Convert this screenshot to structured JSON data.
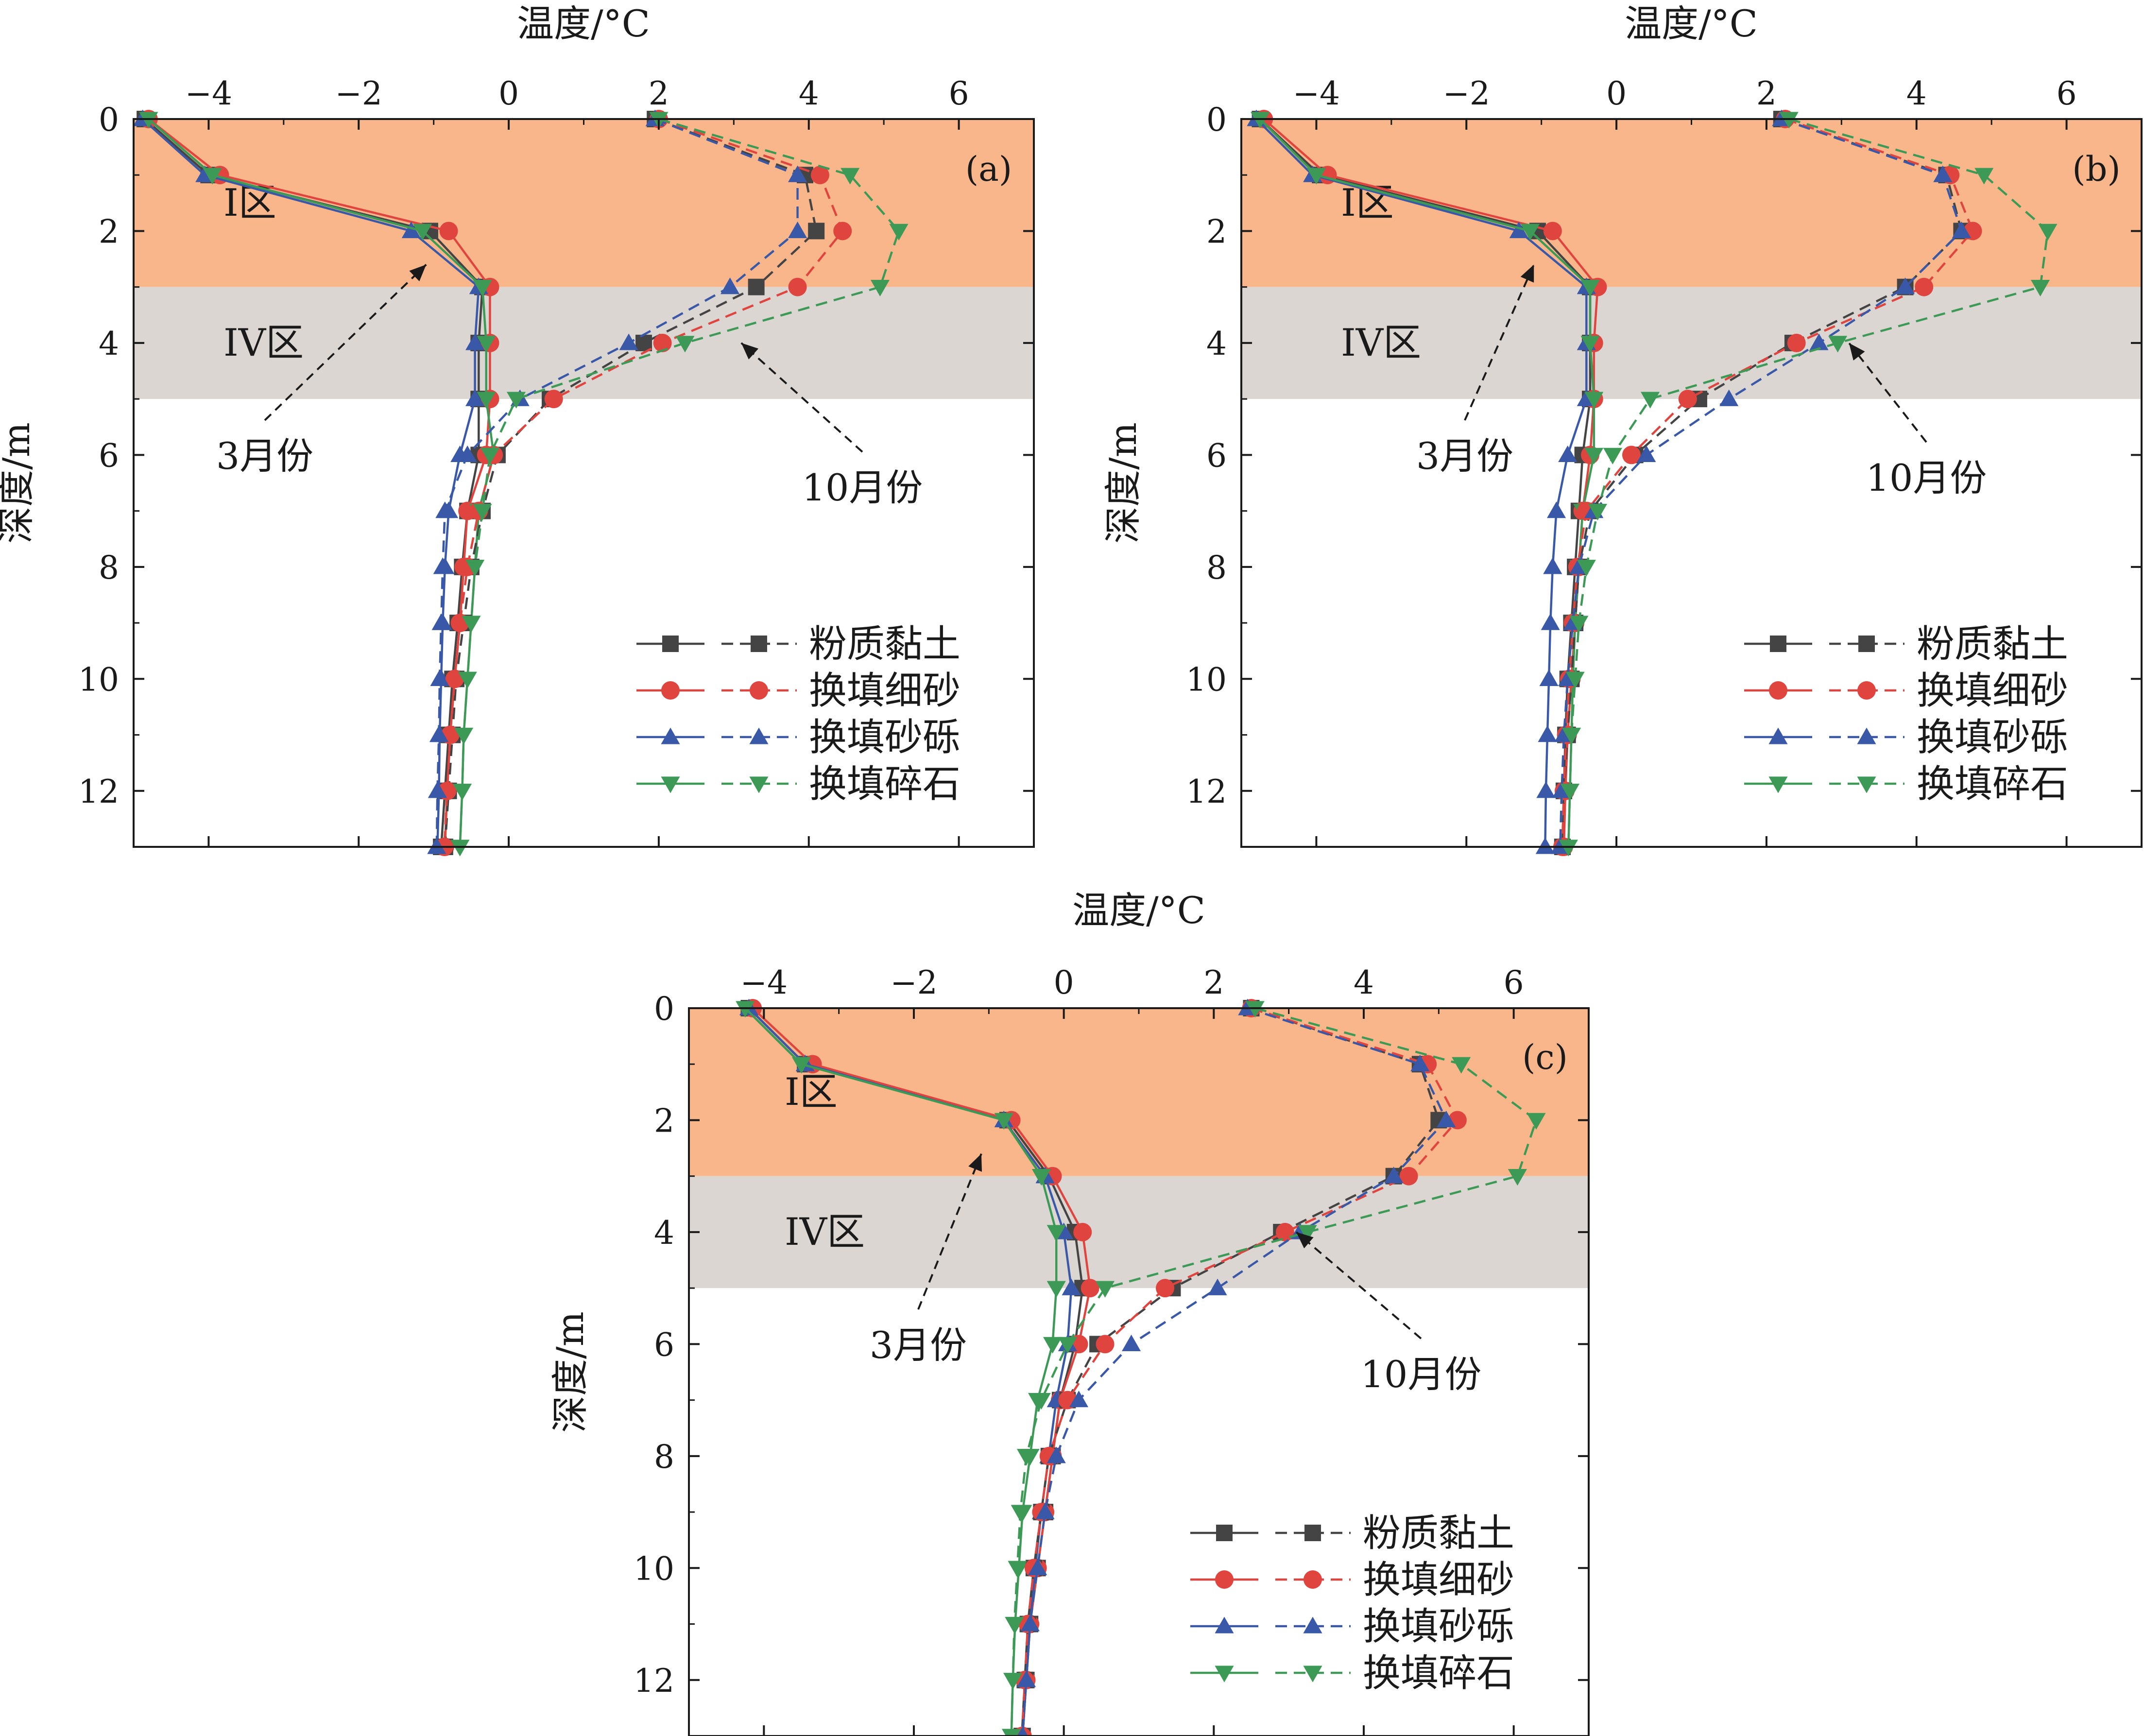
{
  "chart_data": {
    "type": "line",
    "description": "Ground temperature vs depth profiles for four subgrade backfill materials, March (solid lines) and October (dashed lines)",
    "shared": {
      "xlabel": "温度/°C",
      "ylabel": "深度/m",
      "y_ticks": [
        0,
        2,
        4,
        6,
        8,
        10,
        12
      ],
      "y_tick_labels": [
        "0",
        "2",
        "4",
        "6",
        "8",
        "10",
        "12"
      ],
      "ylim": [
        0,
        13
      ],
      "depth": [
        0,
        1,
        2,
        3,
        4,
        5,
        6,
        7,
        8,
        9,
        10,
        11,
        12,
        13
      ],
      "zones": [
        {
          "label": "I区",
          "from_depth": 0,
          "to_depth": 3,
          "color": "#f8b68a"
        },
        {
          "label": "IV区",
          "from_depth": 3,
          "to_depth": 5,
          "color": "#dcd6d2"
        }
      ],
      "annotations": [
        {
          "text": "3月份",
          "points_to": [
            -1.1,
            2.6
          ],
          "series_group": "March"
        },
        {
          "text": "10月份",
          "points_to": [
            3.1,
            4.0
          ],
          "series_group": "October"
        }
      ],
      "legend": {
        "location": "lower-right",
        "entries": [
          {
            "label": "粉质黏土",
            "color": "#444444",
            "marker": "square"
          },
          {
            "label": "换填细砂",
            "color": "#e0443e",
            "marker": "circle"
          },
          {
            "label": "换填砂砾",
            "color": "#3a58a8",
            "marker": "triangle-up"
          },
          {
            "label": "换填碎石",
            "color": "#3c9a56",
            "marker": "triangle-down"
          }
        ],
        "line_styles": {
          "March": "solid",
          "October": "dashed"
        }
      }
    },
    "panels": [
      {
        "label": "(a)",
        "x_ticks": [
          -4,
          -2,
          0,
          2,
          4,
          6
        ],
        "x_tick_labels": [
          "−4",
          "−2",
          "0",
          "2",
          "4",
          "6"
        ],
        "xlim": [
          -5,
          7
        ],
        "series": [
          {
            "name": "粉质黏土",
            "month": "March",
            "values": [
              -4.85,
              -4.0,
              -1.05,
              -0.35,
              -0.4,
              -0.4,
              -0.4,
              -0.55,
              -0.62,
              -0.68,
              -0.75,
              -0.8,
              -0.85,
              -0.9
            ]
          },
          {
            "name": "换填细砂",
            "month": "March",
            "values": [
              -4.8,
              -3.85,
              -0.8,
              -0.25,
              -0.25,
              -0.25,
              -0.3,
              -0.55,
              -0.6,
              -0.65,
              -0.72,
              -0.78,
              -0.82,
              -0.85
            ]
          },
          {
            "name": "换填砂砾",
            "month": "March",
            "values": [
              -4.88,
              -4.05,
              -1.3,
              -0.4,
              -0.45,
              -0.45,
              -0.65,
              -0.8,
              -0.85,
              -0.88,
              -0.9,
              -0.92,
              -0.93,
              -0.95
            ]
          },
          {
            "name": "换填碎石",
            "month": "March",
            "values": [
              -4.8,
              -3.95,
              -1.15,
              -0.35,
              -0.3,
              -0.3,
              -0.2,
              -0.4,
              -0.45,
              -0.5,
              -0.55,
              -0.6,
              -0.62,
              -0.65
            ]
          },
          {
            "name": "粉质黏土",
            "month": "October",
            "values": [
              1.95,
              3.95,
              4.1,
              3.3,
              1.8,
              0.55,
              -0.15,
              -0.35,
              -0.5,
              -0.6,
              -0.7,
              -0.75,
              -0.8,
              -0.85
            ]
          },
          {
            "name": "换填细砂",
            "month": "October",
            "values": [
              2.0,
              4.15,
              4.45,
              3.85,
              2.05,
              0.6,
              -0.2,
              -0.4,
              -0.55,
              -0.65,
              -0.72,
              -0.78,
              -0.82,
              -0.86
            ]
          },
          {
            "name": "换填砂砾",
            "month": "October",
            "values": [
              1.95,
              3.85,
              3.85,
              2.95,
              1.6,
              0.15,
              -0.55,
              -0.85,
              -0.88,
              -0.9,
              -0.92,
              -0.93,
              -0.95,
              -0.96
            ]
          },
          {
            "name": "换填碎石",
            "month": "October",
            "values": [
              2.0,
              4.55,
              5.2,
              4.95,
              2.35,
              0.1,
              -0.25,
              -0.35,
              -0.45,
              -0.5,
              -0.55,
              -0.6,
              -0.62,
              -0.65
            ]
          }
        ]
      },
      {
        "label": "(b)",
        "x_ticks": [
          -4,
          -2,
          0,
          2,
          4,
          6
        ],
        "x_tick_labels": [
          "−4",
          "−2",
          "0",
          "2",
          "4",
          "6"
        ],
        "xlim": [
          -5,
          7
        ],
        "series": [
          {
            "name": "粉质黏土",
            "month": "March",
            "values": [
              -4.75,
              -3.95,
              -1.05,
              -0.35,
              -0.35,
              -0.35,
              -0.45,
              -0.5,
              -0.55,
              -0.6,
              -0.65,
              -0.68,
              -0.7,
              -0.72
            ]
          },
          {
            "name": "换填细砂",
            "month": "March",
            "values": [
              -4.7,
              -3.85,
              -0.85,
              -0.25,
              -0.3,
              -0.3,
              -0.35,
              -0.45,
              -0.5,
              -0.55,
              -0.6,
              -0.65,
              -0.68,
              -0.7
            ]
          },
          {
            "name": "换填砂砾",
            "month": "March",
            "values": [
              -4.8,
              -4.05,
              -1.3,
              -0.4,
              -0.4,
              -0.4,
              -0.65,
              -0.8,
              -0.85,
              -0.88,
              -0.9,
              -0.92,
              -0.94,
              -0.95
            ]
          },
          {
            "name": "换填碎石",
            "month": "March",
            "values": [
              -4.75,
              -4.0,
              -1.15,
              -0.35,
              -0.35,
              -0.3,
              -0.3,
              -0.45,
              -0.5,
              -0.55,
              -0.58,
              -0.6,
              -0.62,
              -0.64
            ]
          },
          {
            "name": "粉质黏土",
            "month": "October",
            "values": [
              2.2,
              4.4,
              4.6,
              3.85,
              2.35,
              1.1,
              0.25,
              -0.35,
              -0.5,
              -0.55,
              -0.6,
              -0.65,
              -0.7,
              -0.72
            ]
          },
          {
            "name": "换填细砂",
            "month": "October",
            "values": [
              2.25,
              4.45,
              4.75,
              4.1,
              2.4,
              0.95,
              0.2,
              -0.4,
              -0.52,
              -0.58,
              -0.63,
              -0.67,
              -0.7,
              -0.72
            ]
          },
          {
            "name": "换填砂砾",
            "month": "October",
            "values": [
              2.2,
              4.35,
              4.6,
              3.85,
              2.7,
              1.5,
              0.4,
              -0.3,
              -0.5,
              -0.58,
              -0.65,
              -0.7,
              -0.73,
              -0.75
            ]
          },
          {
            "name": "换填碎石",
            "month": "October",
            "values": [
              2.3,
              4.9,
              5.75,
              5.65,
              2.95,
              0.45,
              -0.05,
              -0.25,
              -0.4,
              -0.5,
              -0.55,
              -0.6,
              -0.62,
              -0.64
            ]
          }
        ]
      },
      {
        "label": "(c)",
        "x_ticks": [
          -4,
          -2,
          0,
          2,
          4,
          6
        ],
        "x_tick_labels": [
          "−4",
          "−2",
          "0",
          "2",
          "4",
          "6"
        ],
        "xlim": [
          -5,
          7
        ],
        "series": [
          {
            "name": "粉质黏土",
            "month": "March",
            "values": [
              -4.2,
              -3.45,
              -0.75,
              -0.2,
              0.15,
              0.25,
              0.15,
              -0.05,
              -0.15,
              -0.25,
              -0.35,
              -0.45,
              -0.5,
              -0.55
            ]
          },
          {
            "name": "换填细砂",
            "month": "March",
            "values": [
              -4.15,
              -3.35,
              -0.7,
              -0.15,
              0.25,
              0.35,
              0.2,
              -0.05,
              -0.15,
              -0.25,
              -0.35,
              -0.45,
              -0.5,
              -0.55
            ]
          },
          {
            "name": "换填砂砾",
            "month": "March",
            "values": [
              -4.2,
              -3.45,
              -0.8,
              -0.25,
              0.0,
              0.1,
              0.05,
              -0.1,
              -0.2,
              -0.3,
              -0.38,
              -0.45,
              -0.5,
              -0.55
            ]
          },
          {
            "name": "换填碎石",
            "month": "March",
            "values": [
              -4.25,
              -3.5,
              -0.8,
              -0.3,
              -0.1,
              -0.1,
              -0.15,
              -0.35,
              -0.45,
              -0.55,
              -0.6,
              -0.65,
              -0.68,
              -0.7
            ]
          },
          {
            "name": "粉质黏土",
            "month": "October",
            "values": [
              2.5,
              4.75,
              5.0,
              4.4,
              2.9,
              1.45,
              0.45,
              0.05,
              -0.2,
              -0.3,
              -0.4,
              -0.48,
              -0.52,
              -0.56
            ]
          },
          {
            "name": "换填细砂",
            "month": "October",
            "values": [
              2.5,
              4.85,
              5.25,
              4.6,
              2.95,
              1.35,
              0.55,
              0.05,
              -0.2,
              -0.3,
              -0.4,
              -0.48,
              -0.52,
              -0.56
            ]
          },
          {
            "name": "换填砂砾",
            "month": "October",
            "values": [
              2.45,
              4.75,
              5.1,
              4.4,
              3.15,
              2.05,
              0.9,
              0.2,
              -0.1,
              -0.25,
              -0.35,
              -0.45,
              -0.5,
              -0.55
            ]
          },
          {
            "name": "换填碎石",
            "month": "October",
            "values": [
              2.55,
              5.3,
              6.3,
              6.05,
              3.25,
              0.55,
              0.05,
              -0.3,
              -0.5,
              -0.58,
              -0.62,
              -0.66,
              -0.68,
              -0.7
            ]
          }
        ]
      }
    ]
  }
}
